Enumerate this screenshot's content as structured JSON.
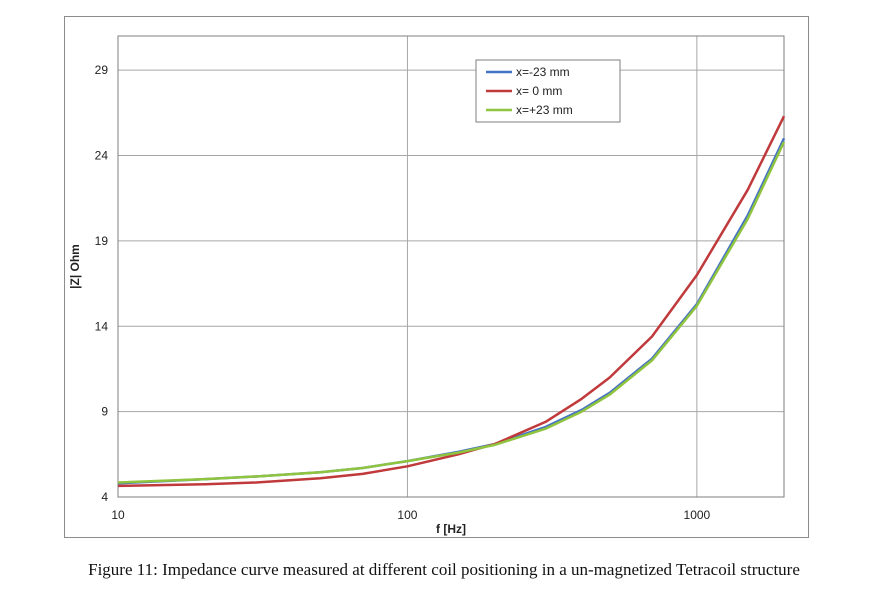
{
  "caption": "Figure 11: Impedance curve measured at different coil positioning in a un-magnetized Tetracoil structure",
  "chart_data": {
    "type": "line",
    "xlabel": "f [Hz]",
    "ylabel": "|Z| Ohm",
    "xscale": "log",
    "xlim": [
      10,
      2000
    ],
    "ylim": [
      4,
      31
    ],
    "xticks": [
      10,
      100,
      1000
    ],
    "xtick_labels": [
      "10",
      "100",
      "1000"
    ],
    "yticks": [
      4,
      9,
      14,
      19,
      24,
      29
    ],
    "ytick_labels": [
      "4",
      "9",
      "14",
      "19",
      "24",
      "29"
    ],
    "grid": true,
    "legend_position": "top-right",
    "series": [
      {
        "name": "x=-23 mm",
        "color": "#4472c4",
        "x": [
          10,
          20,
          30,
          50,
          70,
          100,
          150,
          200,
          300,
          400,
          500,
          700,
          1000,
          1500,
          2000
        ],
        "y": [
          4.8,
          5.05,
          5.2,
          5.45,
          5.7,
          6.1,
          6.65,
          7.1,
          8.1,
          9.1,
          10.1,
          12.1,
          15.3,
          20.5,
          25.0
        ]
      },
      {
        "name": "x= 0 mm",
        "color": "#c0393b",
        "x": [
          10,
          20,
          30,
          50,
          70,
          100,
          150,
          200,
          300,
          400,
          500,
          700,
          1000,
          1500,
          2000
        ],
        "y": [
          4.65,
          4.75,
          4.85,
          5.1,
          5.35,
          5.8,
          6.5,
          7.1,
          8.4,
          9.75,
          11.0,
          13.4,
          17.0,
          22.0,
          26.3
        ]
      },
      {
        "name": "x=+23 mm",
        "color": "#8fc43f",
        "x": [
          10,
          20,
          30,
          50,
          70,
          100,
          150,
          200,
          300,
          400,
          500,
          700,
          1000,
          1500,
          2000
        ],
        "y": [
          4.85,
          5.05,
          5.2,
          5.45,
          5.7,
          6.1,
          6.6,
          7.05,
          8.0,
          9.0,
          10.0,
          12.0,
          15.2,
          20.3,
          24.8
        ]
      }
    ]
  }
}
